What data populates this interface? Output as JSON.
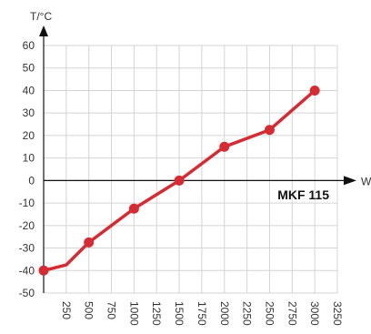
{
  "chart_data": {
    "type": "line",
    "x_label": "W",
    "y_label": "T/°C",
    "annotation": "MKF 115",
    "x_ticks": [
      "250",
      "500",
      "750",
      "1000",
      "1250",
      "1500",
      "1750",
      "2000",
      "2250",
      "2500",
      "2750",
      "3000",
      "3250"
    ],
    "y_ticks": [
      "60",
      "50",
      "40",
      "30",
      "20",
      "10",
      "0",
      "-10",
      "-20",
      "-30",
      "-40",
      "-50"
    ],
    "xlim": [
      0,
      3250
    ],
    "ylim": [
      -50,
      60
    ],
    "grid": true,
    "series": [
      {
        "x": [
          0,
          250,
          500,
          1000,
          1500,
          2000,
          2500,
          3000
        ],
        "y": [
          -40,
          -37.5,
          -27.5,
          -12.5,
          0,
          15,
          22.5,
          40
        ],
        "markers": [
          true,
          false,
          true,
          true,
          true,
          true,
          true,
          true
        ]
      }
    ],
    "colors": {
      "line": "#d62b33",
      "grid": "#d4d4d4",
      "axis": "#111111"
    }
  }
}
